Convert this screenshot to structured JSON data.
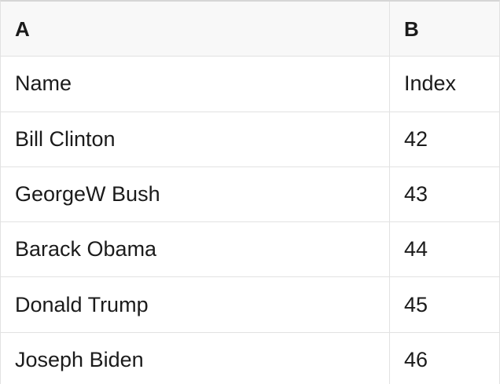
{
  "table": {
    "columns": [
      {
        "id": "A",
        "header": "A"
      },
      {
        "id": "B",
        "header": "B"
      }
    ],
    "rows": [
      [
        "Name",
        "Index"
      ],
      [
        "Bill Clinton",
        "42"
      ],
      [
        "GeorgeW Bush",
        "43"
      ],
      [
        "Barack Obama",
        "44"
      ],
      [
        "Donald Trump",
        "45"
      ],
      [
        "Joseph Biden",
        "46"
      ]
    ]
  },
  "colors": {
    "header_bg": "#f8f8f8",
    "body_bg": "#ffffff",
    "border": "#e2e2e2",
    "border_top": "#d6d6d6",
    "text": "#1b1b1b"
  }
}
